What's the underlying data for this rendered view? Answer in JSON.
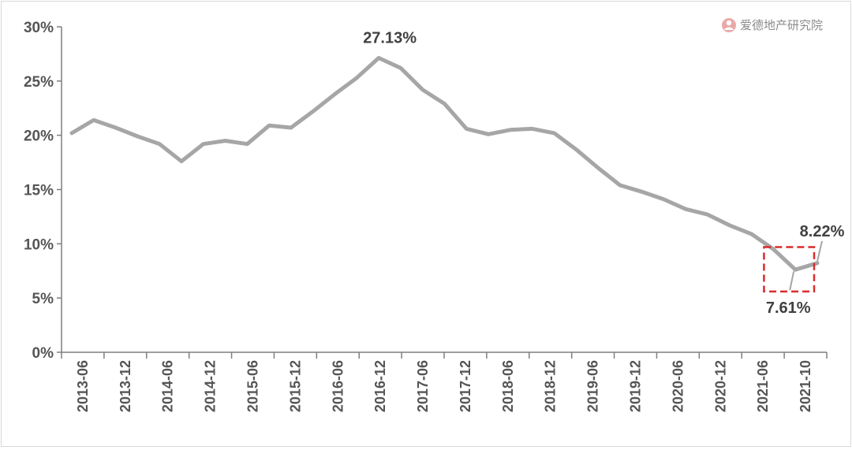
{
  "watermark": {
    "text": "爱德地产研究院",
    "icon": "person-logo-icon",
    "color": "#e8a0a0"
  },
  "chart_data": {
    "type": "line",
    "y_unit": "%",
    "ylim": [
      0,
      30
    ],
    "yticks": [
      "0%",
      "5%",
      "10%",
      "15%",
      "20%",
      "25%",
      "30%"
    ],
    "x_tick_labels": [
      "2013-06",
      "2013-12",
      "2014-06",
      "2014-12",
      "2015-06",
      "2015-12",
      "2016-06",
      "2016-12",
      "2017-06",
      "2017-12",
      "2018-06",
      "2018-12",
      "2019-06",
      "2019-12",
      "2020-06",
      "2020-12",
      "2021-06",
      "2021-10"
    ],
    "series": [
      {
        "color": "#a6a6a6",
        "values": [
          20.2,
          21.4,
          20.7,
          19.9,
          19.2,
          17.6,
          19.2,
          19.5,
          19.2,
          20.9,
          20.7,
          22.2,
          23.8,
          25.3,
          27.13,
          26.2,
          24.2,
          22.9,
          20.6,
          20.1,
          20.5,
          20.6,
          20.2,
          18.7,
          17.0,
          15.4,
          14.8,
          14.1,
          13.2,
          12.7,
          11.7,
          10.9,
          9.5,
          7.61,
          8.22
        ]
      }
    ],
    "annotations": [
      {
        "text": "27.13%",
        "index": 14
      },
      {
        "text": "7.61%",
        "index": 33
      },
      {
        "text": "8.22%",
        "index": 34
      }
    ],
    "highlight_box": {
      "from_index": 32,
      "to_index": 34,
      "y_range": [
        5.6,
        9.7
      ],
      "color": "#d92b2b"
    },
    "grid": false,
    "legend": "none"
  }
}
